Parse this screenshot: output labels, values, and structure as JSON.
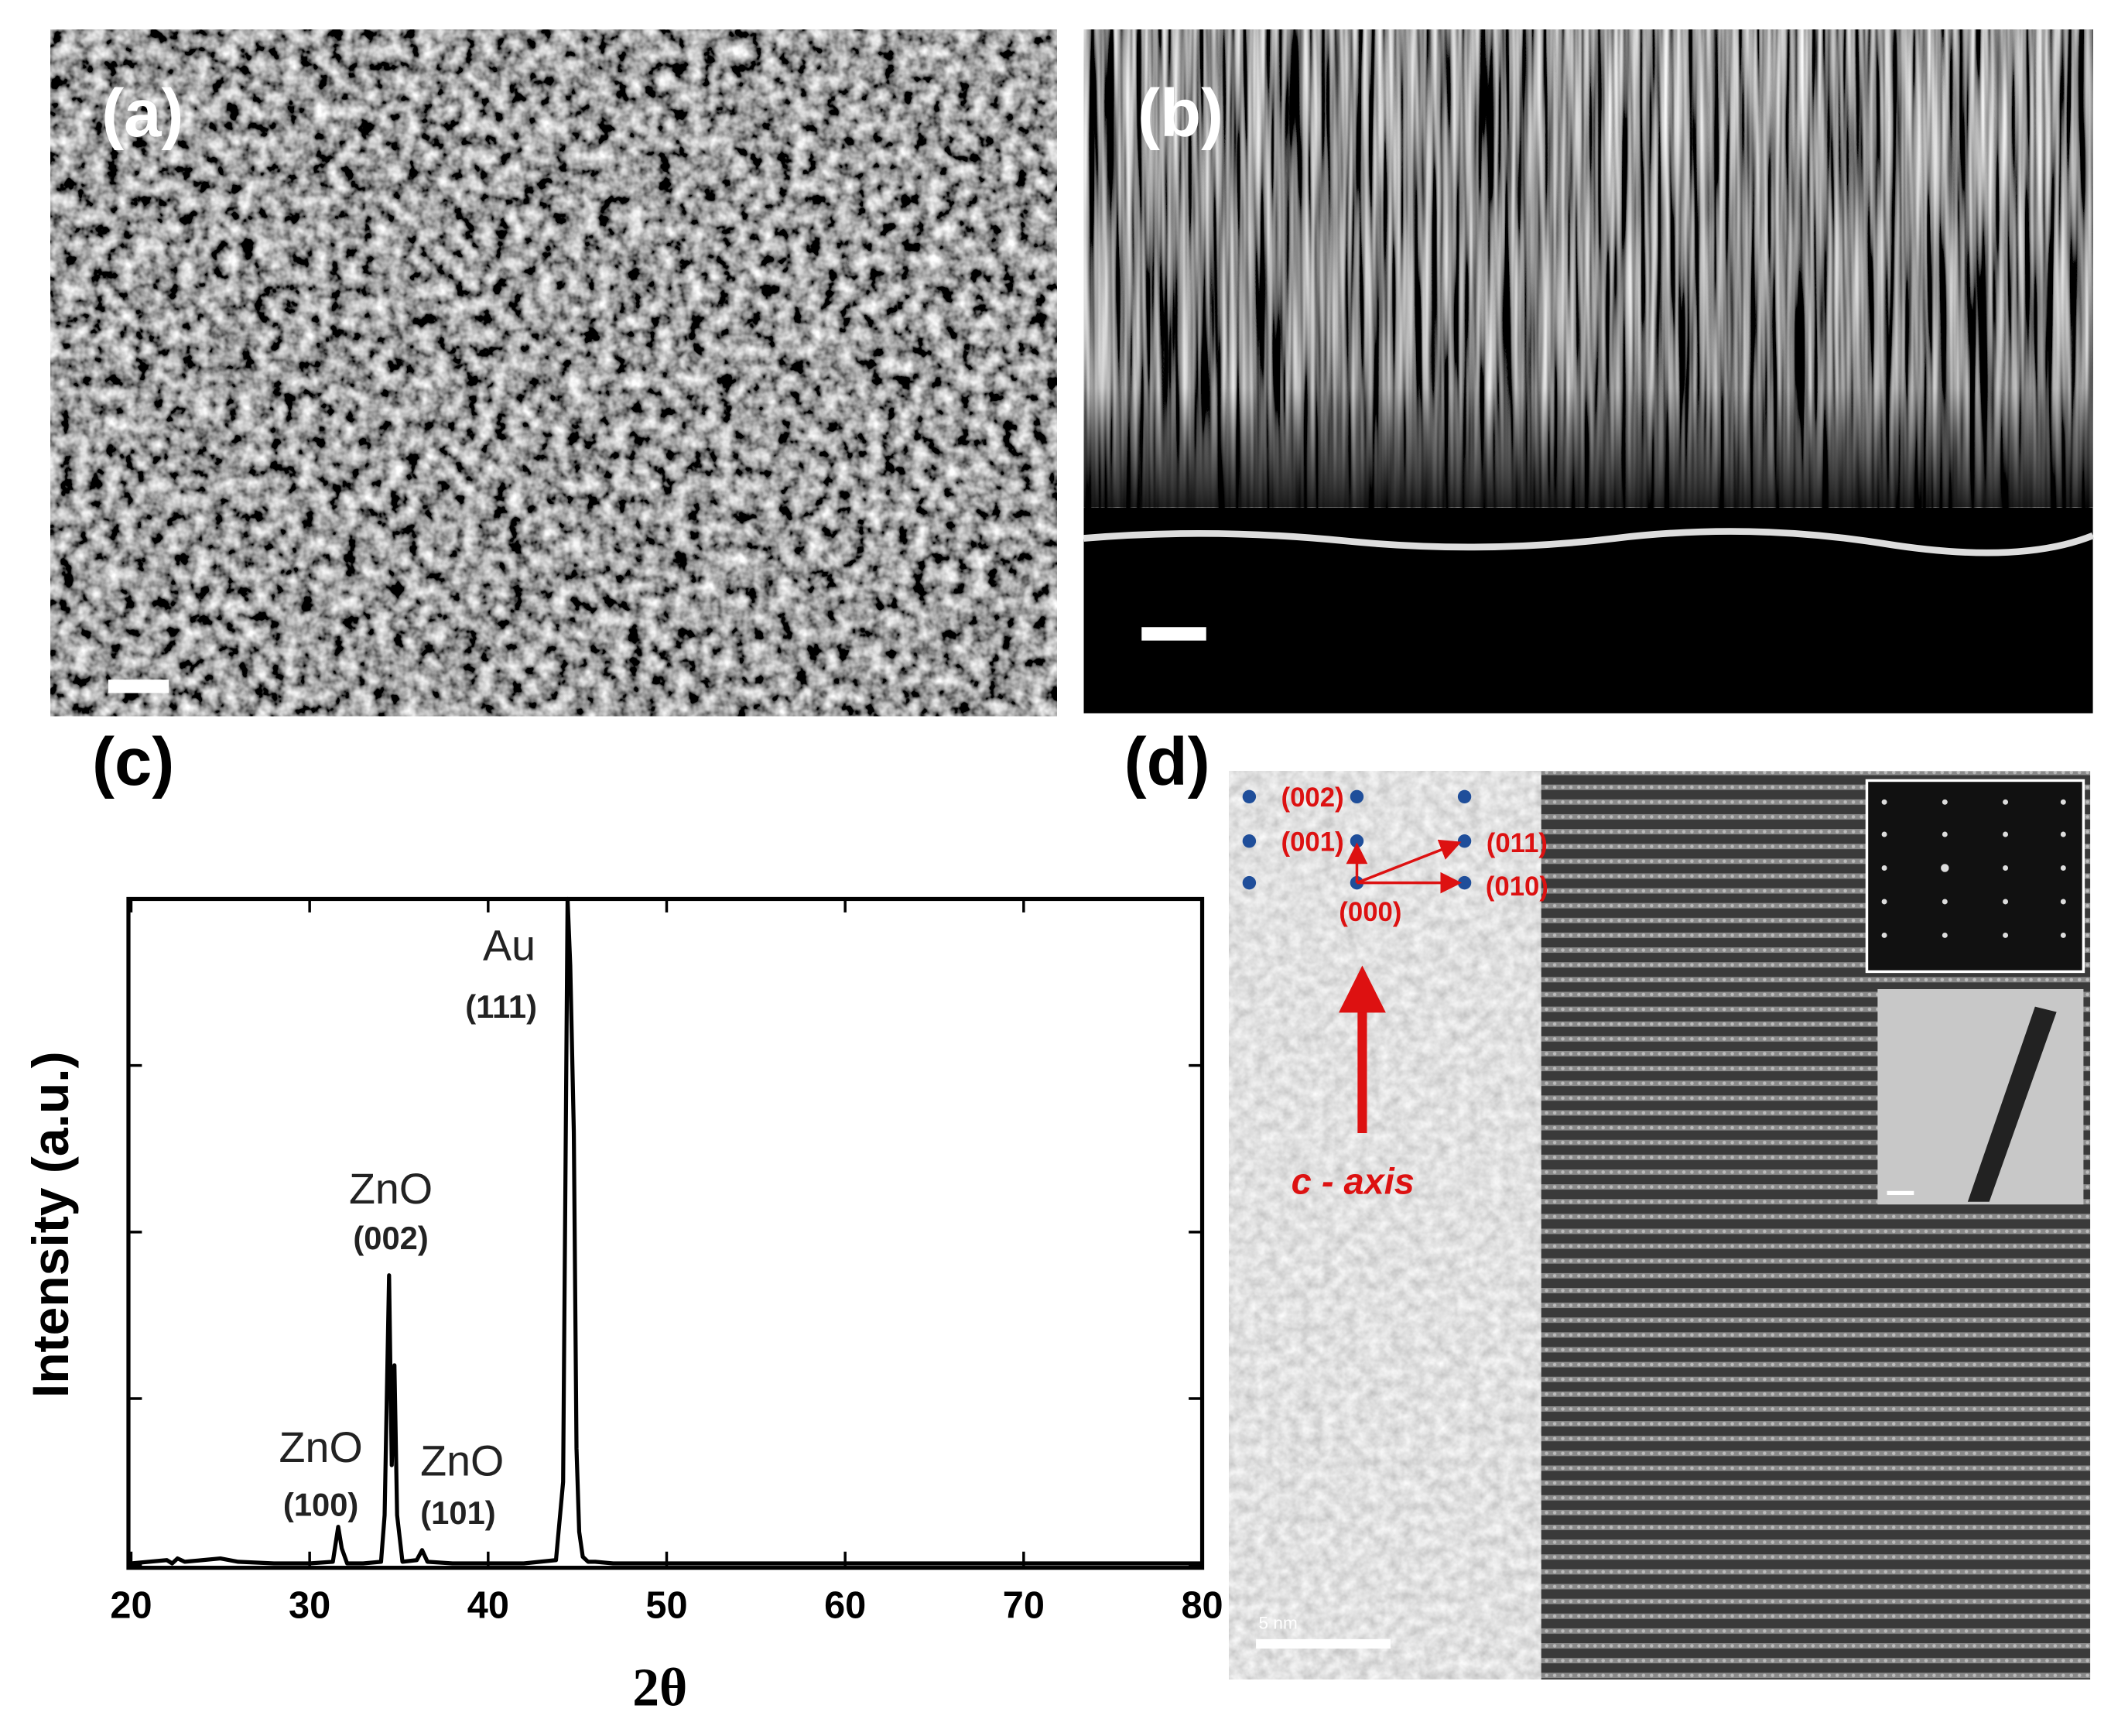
{
  "panels": {
    "a": {
      "label": "(a)"
    },
    "b": {
      "label": "(b)"
    },
    "c": {
      "label": "(c)"
    },
    "d": {
      "label": "(d)",
      "spots": [
        "(002)",
        "(001)",
        "(011)",
        "(010)",
        "(000)"
      ],
      "arrow_label": "c - axis",
      "scale_bar": "5 nm"
    }
  },
  "chart_data": {
    "type": "line",
    "xlabel": "2θ",
    "ylabel": "Intensity (a.u.)",
    "x": [
      20,
      21,
      22,
      22.3,
      22.6,
      23,
      24,
      25,
      26,
      28,
      30,
      31.3,
      31.6,
      31.8,
      32.1,
      33,
      34,
      34.2,
      34.45,
      34.6,
      34.75,
      34.9,
      35.2,
      36,
      36.3,
      36.6,
      38,
      40,
      42,
      43.8,
      44.2,
      44.45,
      44.6,
      44.8,
      44.95,
      45.1,
      45.3,
      45.6,
      46,
      47,
      50,
      55,
      60,
      65,
      70,
      75,
      80
    ],
    "values": [
      0.01,
      0.02,
      0.03,
      0.01,
      0.04,
      0.02,
      0.03,
      0.04,
      0.02,
      0.01,
      0.01,
      0.02,
      0.23,
      0.1,
      0.01,
      0.01,
      0.02,
      0.3,
      1.74,
      0.6,
      1.2,
      0.3,
      0.02,
      0.03,
      0.09,
      0.02,
      0.01,
      0.01,
      0.01,
      0.03,
      0.5,
      4,
      3.6,
      2.6,
      0.7,
      0.2,
      0.05,
      0.02,
      0.02,
      0.01,
      0.01,
      0.01,
      0.01,
      0.01,
      0.01,
      0.01,
      0.01
    ],
    "color": "#000000",
    "xlim": [
      20,
      80
    ],
    "xticks": [
      20,
      30,
      40,
      50,
      60,
      70,
      80
    ],
    "ylim": [
      0,
      4
    ],
    "yticks": [
      0,
      1,
      2,
      3,
      4
    ],
    "annotations": [
      "Au",
      "(111)",
      "ZnO",
      "(002)",
      "ZnO",
      "(100)",
      "ZnO",
      "(101)"
    ]
  }
}
